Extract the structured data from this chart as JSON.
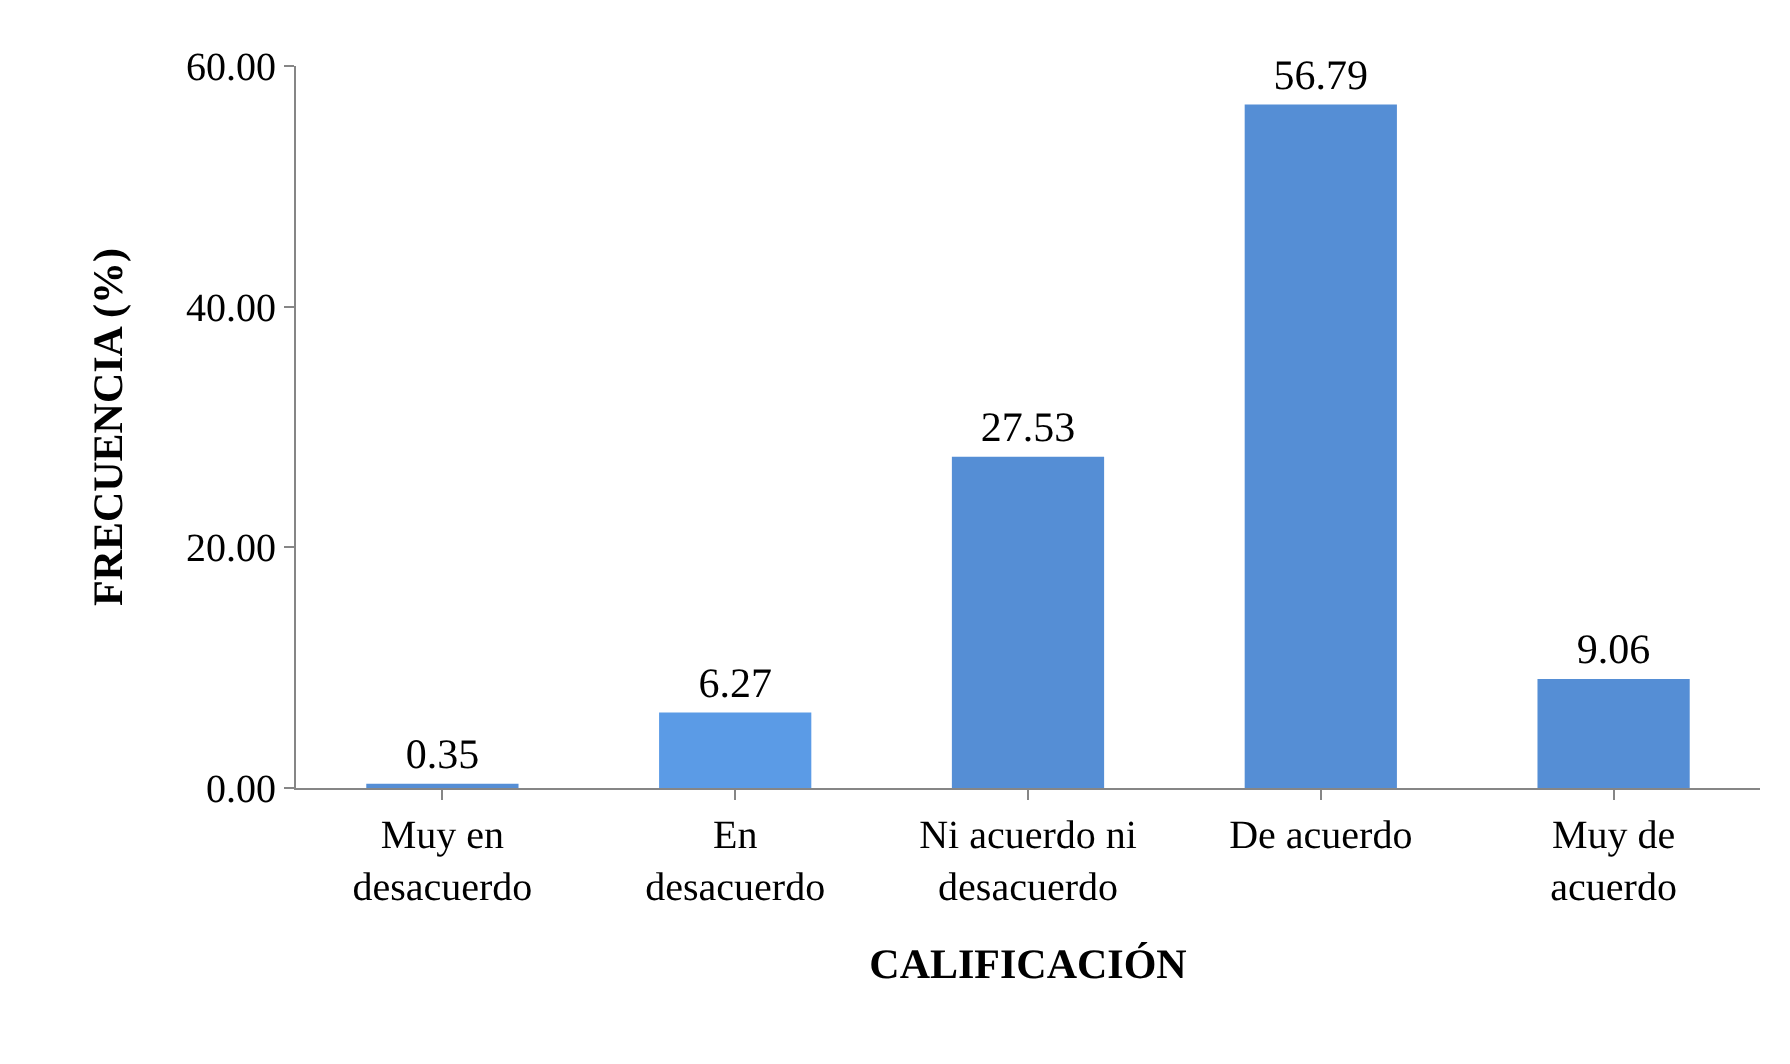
{
  "chart_data": {
    "type": "bar",
    "xlabel": "CALIFICACIÓN",
    "ylabel": "FRECUENCIA (%)",
    "categories": [
      "Muy en\ndesacuerdo",
      "En\ndesacuerdo",
      "Ni acuerdo ni\ndesacuerdo",
      "De acuerdo",
      "Muy de\nacuerdo"
    ],
    "values": [
      0.35,
      6.27,
      27.53,
      56.79,
      9.06
    ],
    "colors": [
      "#558ed5",
      "#5b9be6",
      "#558ed5",
      "#558ed5",
      "#558ed5"
    ],
    "data_labels": true,
    "ylim": [
      0,
      60
    ],
    "yticks": [
      {
        "value": 0,
        "label": "0.00"
      },
      {
        "value": 20,
        "label": "20.00"
      },
      {
        "value": 40,
        "label": "40.00"
      },
      {
        "value": 60,
        "label": "60.00"
      }
    ],
    "tick_labels": true
  }
}
